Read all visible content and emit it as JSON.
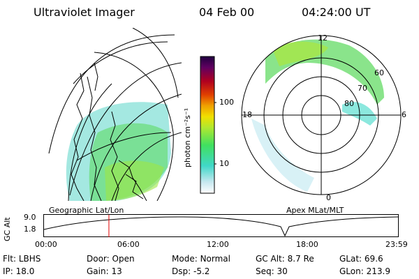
{
  "header": {
    "instrument": "Ultraviolet Imager",
    "date": "04 Feb 00",
    "time": "04:24:00 UT"
  },
  "panels": {
    "left_label": "Geographic Lat/Lon",
    "right_label": "Apex  MLat/MLT"
  },
  "colorbar": {
    "unit_label": "photon cm⁻²s⁻¹",
    "ticks": [
      "100",
      "10"
    ],
    "gradient_colors": [
      "#ffffff",
      "#c8e8f0",
      "#40d8c8",
      "#40e060",
      "#b0e830",
      "#f0e000",
      "#f0a000",
      "#e04000",
      "#b00020",
      "#600060",
      "#200040"
    ]
  },
  "polar": {
    "mlt_labels": {
      "top": "12",
      "left": "18",
      "right": "6",
      "bottom": "0"
    },
    "lat_labels": [
      "60",
      "70",
      "80"
    ]
  },
  "altitude_plot": {
    "ylabel": "GC Alt",
    "yticks": [
      "9.0",
      "1.8"
    ],
    "xticks": [
      "00:00",
      "06:00",
      "12:00",
      "18:00",
      "23:59"
    ],
    "marker_hour": 4.4
  },
  "status": {
    "row1": [
      {
        "key": "Flt:",
        "value": "LBHS"
      },
      {
        "key": "Door:",
        "value": "Open"
      },
      {
        "key": "Mode:",
        "value": "Normal"
      },
      {
        "key": "GC Alt:",
        "value": "8.7 Re"
      },
      {
        "key": "GLat:",
        "value": "69.6"
      }
    ],
    "row2": [
      {
        "key": "IP:",
        "value": "18.0"
      },
      {
        "key": "Gain:",
        "value": "13"
      },
      {
        "key": "Dsp:",
        "value": "-5.2"
      },
      {
        "key": "Seq:",
        "value": "30"
      },
      {
        "key": "GLon:",
        "value": "213.9"
      }
    ]
  }
}
